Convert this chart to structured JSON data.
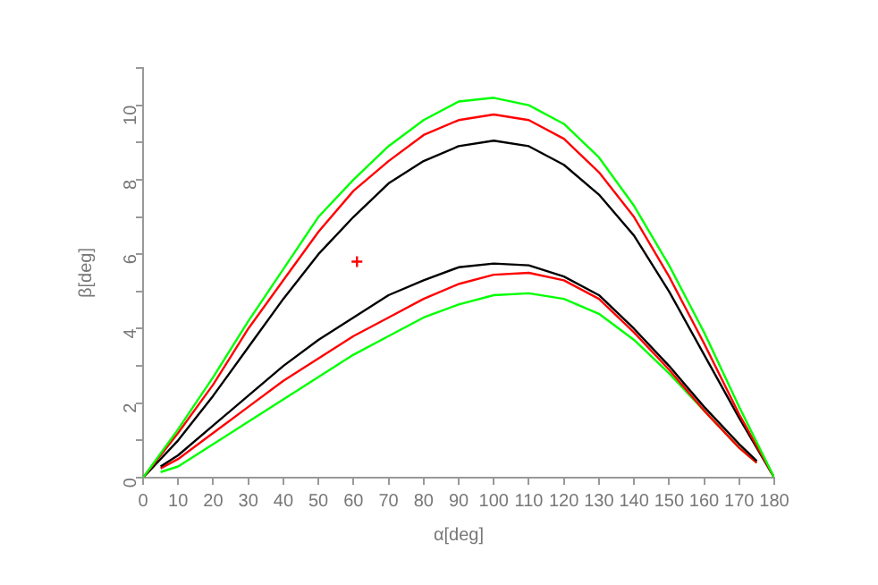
{
  "chart_data": {
    "type": "line",
    "xlabel": "α[deg]",
    "ylabel": "β[deg]",
    "x": [
      0,
      10,
      20,
      30,
      40,
      50,
      60,
      70,
      80,
      90,
      100,
      110,
      120,
      130,
      140,
      150,
      160,
      170,
      180
    ],
    "xlim": [
      0,
      180
    ],
    "xticks": [
      0,
      10,
      20,
      30,
      40,
      50,
      60,
      70,
      80,
      90,
      100,
      110,
      120,
      130,
      140,
      150,
      160,
      170,
      180
    ],
    "ylim": [
      0,
      11
    ],
    "yticks": [
      0,
      {
        "value": 1,
        "label": null
      },
      2,
      {
        "value": 3,
        "label": null
      },
      4,
      {
        "value": 5,
        "label": null
      },
      6,
      {
        "value": 7,
        "label": null
      },
      8,
      {
        "value": 9,
        "label": null
      },
      10,
      {
        "value": 11,
        "label": null
      }
    ],
    "grid": false,
    "legend": false,
    "marker": "none",
    "line_style": "solid",
    "series": [
      {
        "color": "#00ff00",
        "values": [
          0,
          1.3,
          2.7,
          4.2,
          5.6,
          7.0,
          8.0,
          8.9,
          9.6,
          10.1,
          10.2,
          10.0,
          9.5,
          8.6,
          7.3,
          5.7,
          3.9,
          1.9,
          0
        ]
      },
      {
        "color": "#ff0000",
        "values": [
          0,
          1.2,
          2.5,
          4.0,
          5.3,
          6.6,
          7.7,
          8.5,
          9.2,
          9.6,
          9.75,
          9.6,
          9.1,
          8.2,
          7.0,
          5.4,
          3.6,
          1.7,
          0
        ]
      },
      {
        "color": "#000000",
        "values": [
          0,
          1.0,
          2.2,
          3.5,
          4.8,
          6.0,
          7.0,
          7.9,
          8.5,
          8.9,
          9.05,
          8.9,
          8.4,
          7.6,
          6.5,
          5.0,
          3.3,
          1.6,
          0
        ]
      },
      {
        "color": "#000000",
        "x": [
          5,
          10,
          20,
          30,
          40,
          50,
          60,
          70,
          80,
          90,
          100,
          110,
          120,
          130,
          140,
          150,
          160,
          170,
          175
        ],
        "values": [
          0.3,
          0.6,
          1.4,
          2.2,
          3.0,
          3.7,
          4.3,
          4.9,
          5.3,
          5.65,
          5.75,
          5.7,
          5.4,
          4.9,
          4.0,
          3.0,
          1.9,
          0.9,
          0.45
        ]
      },
      {
        "color": "#ff0000",
        "x": [
          5,
          10,
          20,
          30,
          40,
          50,
          60,
          70,
          80,
          90,
          100,
          110,
          120,
          130,
          140,
          150,
          160,
          170,
          175
        ],
        "values": [
          0.25,
          0.5,
          1.2,
          1.9,
          2.6,
          3.2,
          3.8,
          4.3,
          4.8,
          5.2,
          5.45,
          5.5,
          5.3,
          4.8,
          3.9,
          2.9,
          1.8,
          0.8,
          0.4
        ]
      },
      {
        "color": "#00ff00",
        "x": [
          5,
          10,
          20,
          30,
          40,
          50,
          60,
          70,
          80,
          90,
          100,
          110,
          120,
          130,
          140,
          150,
          160,
          170,
          175
        ],
        "values": [
          0.15,
          0.3,
          0.9,
          1.5,
          2.1,
          2.7,
          3.3,
          3.8,
          4.3,
          4.65,
          4.9,
          4.95,
          4.8,
          4.4,
          3.7,
          2.8,
          1.8,
          0.8,
          0.4
        ]
      },
      {
        "type": "scatter",
        "marker": "cross",
        "color": "#ff0000",
        "x": [
          61
        ],
        "values": [
          5.8
        ]
      }
    ]
  }
}
